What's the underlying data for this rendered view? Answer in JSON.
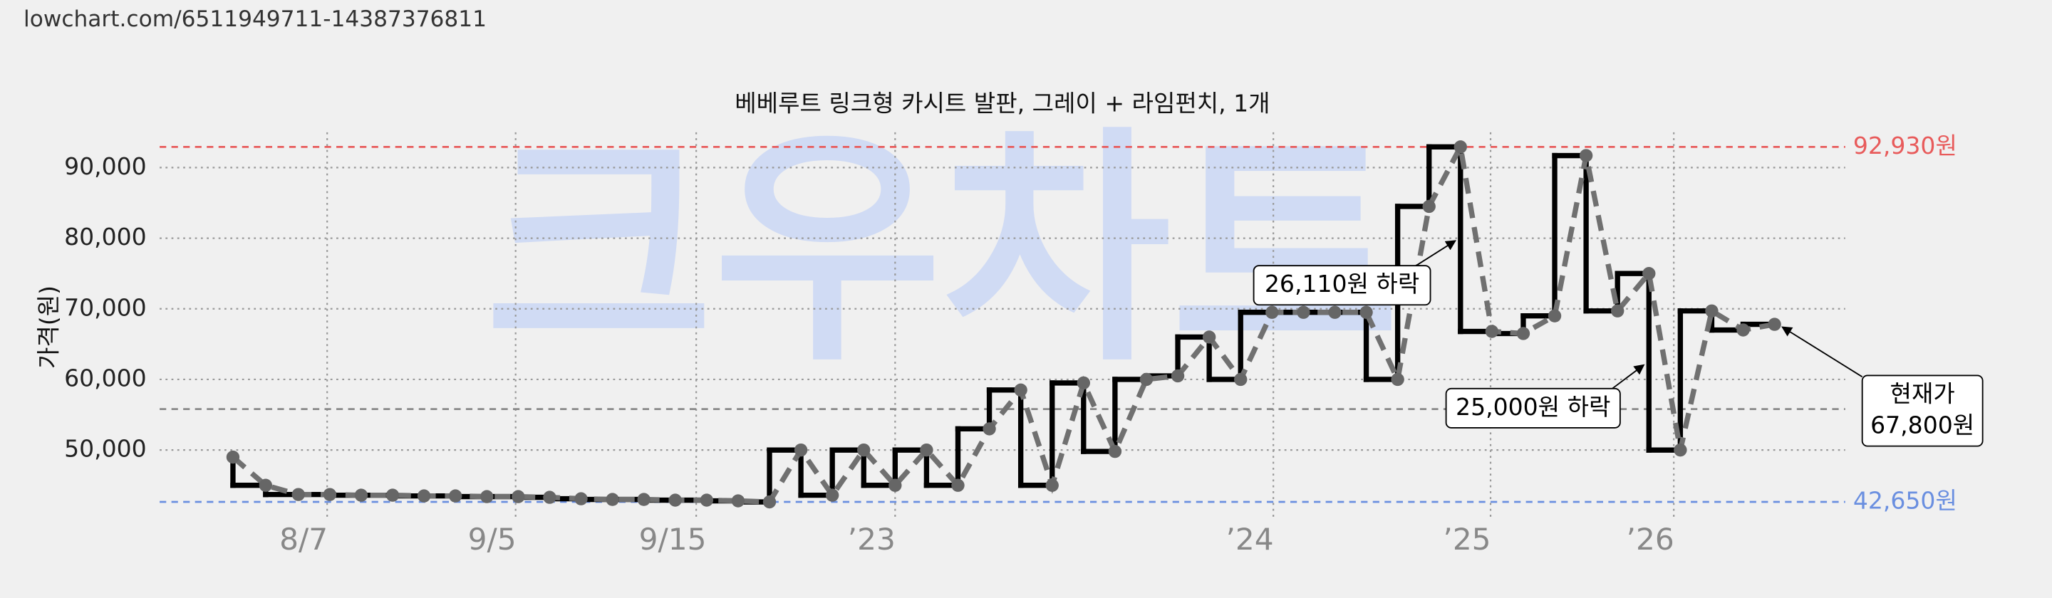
{
  "source": "lowchart.com/6511949711-14387376811",
  "watermark": "크우차트",
  "chart_data": {
    "type": "line",
    "title": "베베루트 링크형 카시트 발판, 그레이 + 라임펀치, 1개",
    "y_label": "가격(원)",
    "x": [
      178,
      203,
      228,
      252,
      276,
      300,
      324,
      348,
      372,
      396,
      420,
      444,
      468,
      492,
      516,
      540,
      564,
      588,
      612,
      636,
      660,
      684,
      708,
      732,
      756,
      780,
      804,
      828,
      852,
      876,
      900,
      924,
      948,
      972,
      996,
      1020,
      1044,
      1068,
      1092,
      1116,
      1140,
      1164,
      1188,
      1212,
      1236,
      1260,
      1284,
      1308,
      1332,
      1356
    ],
    "series": [
      {
        "color": "#000000",
        "dash_color": "#707070",
        "values": [
          49000,
          45000,
          43700,
          43700,
          43600,
          43600,
          43500,
          43500,
          43400,
          43400,
          43300,
          43100,
          43000,
          43000,
          42900,
          42900,
          42800,
          42650,
          50000,
          43600,
          50000,
          45000,
          50000,
          45000,
          53000,
          58500,
          45000,
          59500,
          49800,
          60000,
          60500,
          66000,
          60000,
          69500,
          69500,
          69500,
          69500,
          60000,
          84500,
          92930,
          66800,
          66500,
          69000,
          91700,
          69700,
          75000,
          50000,
          69700,
          67000,
          67800
        ]
      }
    ],
    "xlim": [
      122,
      1410
    ],
    "xticks": [
      {
        "value": 232,
        "label": "8/7"
      },
      {
        "value": 376,
        "label": "9/5"
      },
      {
        "value": 514,
        "label": "9/15"
      },
      {
        "value": 666,
        "label": "’23"
      },
      {
        "value": 955,
        "label": "’24"
      },
      {
        "value": 1121,
        "label": "’25"
      },
      {
        "value": 1261,
        "label": "’26"
      }
    ],
    "ylim": [
      40000,
      95000
    ],
    "yticks": [
      {
        "value": 50000,
        "label": "50,000"
      },
      {
        "value": 60000,
        "label": "60,000"
      },
      {
        "value": 70000,
        "label": "70,000"
      },
      {
        "value": 80000,
        "label": "80,000"
      },
      {
        "value": 90000,
        "label": "90,000"
      }
    ],
    "grid": true,
    "reference_lines": [
      {
        "value": 92930,
        "label": "92,930원",
        "color": "#e85b5b"
      },
      {
        "value": 42650,
        "label": "42,650원",
        "color": "#6a8fe0"
      },
      {
        "value": 55800,
        "color": "#888888"
      }
    ],
    "annotations": [
      {
        "lines": [
          "26,110원 하락"
        ]
      },
      {
        "lines": [
          "25,000원 하락"
        ]
      },
      {
        "lines": [
          "현재가",
          "67,800원"
        ]
      }
    ]
  }
}
